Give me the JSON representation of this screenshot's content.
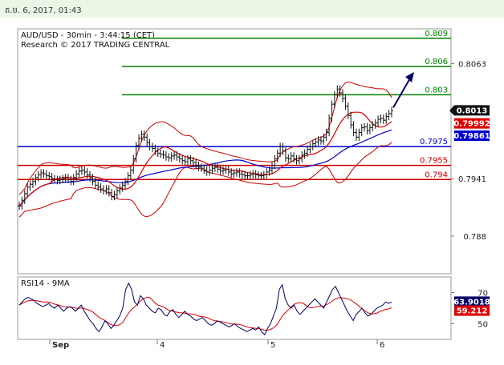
{
  "timestamp": "ត.ម. 6, 2017, 01:43",
  "chart_data": [
    {
      "type": "line",
      "title": "AUD/USD - 30min - 3:44:15 (CET)",
      "subtitle": "Research © 2017 TRADING CENTRAL",
      "ylim": [
        0.784,
        0.81
      ],
      "y_ticks": [
        0.8063,
        0.7941,
        0.788
      ],
      "x_ticks": [
        "Sep",
        "4",
        "5",
        "6"
      ],
      "levels": [
        {
          "label": "0.809",
          "value": 0.809,
          "color": "#008000"
        },
        {
          "label": "0.806",
          "value": 0.806,
          "color": "#008000"
        },
        {
          "label": "0.803",
          "value": 0.803,
          "color": "#008000"
        },
        {
          "label": "0.7975",
          "value": 0.7975,
          "color": "#0000cc"
        },
        {
          "label": "0.7955",
          "value": 0.7955,
          "color": "#cc0000"
        },
        {
          "label": "0.794",
          "value": 0.794,
          "color": "#cc0000"
        }
      ],
      "last_price": "0.8013",
      "ma_fast_label": "0.79992",
      "ma_slow_label": "0.79861",
      "price_color": "#111111",
      "ma_fast_color": "#dd0000",
      "ma_slow_color": "#0000cc",
      "bollinger_color": "#cc0000",
      "arrow_color": "#000066",
      "close_series": [
        0.7912,
        0.7918,
        0.7925,
        0.7932,
        0.7935,
        0.7938,
        0.7942,
        0.7945,
        0.7947,
        0.7946,
        0.7944,
        0.7943,
        0.7941,
        0.794,
        0.7939,
        0.794,
        0.7941,
        0.7942,
        0.794,
        0.7938,
        0.7942,
        0.7946,
        0.7949,
        0.795,
        0.7948,
        0.7945,
        0.7942,
        0.7938,
        0.7934,
        0.7932,
        0.793,
        0.7928,
        0.793,
        0.7926,
        0.7922,
        0.7924,
        0.7928,
        0.7931,
        0.7934,
        0.7938,
        0.7944,
        0.795,
        0.7962,
        0.7976,
        0.7984,
        0.7988,
        0.7985,
        0.7979,
        0.7975,
        0.7973,
        0.797,
        0.7968,
        0.7967,
        0.7966,
        0.7964,
        0.7963,
        0.7965,
        0.7966,
        0.7964,
        0.7962,
        0.796,
        0.7959,
        0.7962,
        0.796,
        0.7958,
        0.7955,
        0.7953,
        0.7952,
        0.795,
        0.7948,
        0.795,
        0.7952,
        0.7953,
        0.7951,
        0.7949,
        0.795,
        0.7951,
        0.7948,
        0.7946,
        0.7947,
        0.7948,
        0.7946,
        0.7945,
        0.7944,
        0.7944,
        0.7945,
        0.7946,
        0.7945,
        0.7944,
        0.7944,
        0.7945,
        0.7948,
        0.795,
        0.7955,
        0.7962,
        0.7968,
        0.7975,
        0.797,
        0.7963,
        0.7962,
        0.7965,
        0.7962,
        0.796,
        0.7962,
        0.7966,
        0.7968,
        0.7972,
        0.7975,
        0.7978,
        0.798,
        0.7982,
        0.7981,
        0.7985,
        0.799,
        0.8005,
        0.802,
        0.803,
        0.8036,
        0.8032,
        0.8026,
        0.8018,
        0.8008,
        0.7998,
        0.799,
        0.7985,
        0.799,
        0.7995,
        0.7996,
        0.7992,
        0.7995,
        0.7998,
        0.8,
        0.8004,
        0.8005,
        0.8003,
        0.8007,
        0.801,
        0.8013
      ],
      "rsi": {
        "title": "RSI14 - 9MA",
        "ylim": [
          40,
          80
        ],
        "y_ticks": [
          70,
          50
        ],
        "value_label": "63.9018",
        "ma_label": "59.212",
        "rsi_color": "#000066",
        "ma_color": "#dd0000",
        "rsi_series": [
          62,
          64,
          66,
          67,
          66,
          65,
          63,
          62,
          61,
          62,
          63,
          61,
          60,
          62,
          60,
          58,
          60,
          61,
          60,
          58,
          60,
          62,
          58,
          55,
          52,
          50,
          47,
          45,
          48,
          52,
          50,
          47,
          49,
          52,
          55,
          60,
          72,
          76,
          72,
          64,
          62,
          68,
          66,
          62,
          60,
          58,
          57,
          60,
          59,
          56,
          55,
          58,
          59,
          56,
          54,
          56,
          58,
          56,
          55,
          53,
          52,
          53,
          54,
          52,
          50,
          49,
          50,
          52,
          51,
          50,
          49,
          48,
          49,
          50,
          48,
          47,
          46,
          45,
          46,
          47,
          46,
          48,
          45,
          43,
          47,
          50,
          55,
          60,
          72,
          75,
          66,
          62,
          60,
          62,
          58,
          56,
          58,
          60,
          62,
          64,
          66,
          64,
          62,
          60,
          64,
          68,
          72,
          74,
          70,
          66,
          62,
          58,
          55,
          52,
          56,
          58,
          60,
          57,
          55,
          56,
          58,
          60,
          61,
          62,
          64,
          63,
          64
        ]
      }
    }
  ]
}
